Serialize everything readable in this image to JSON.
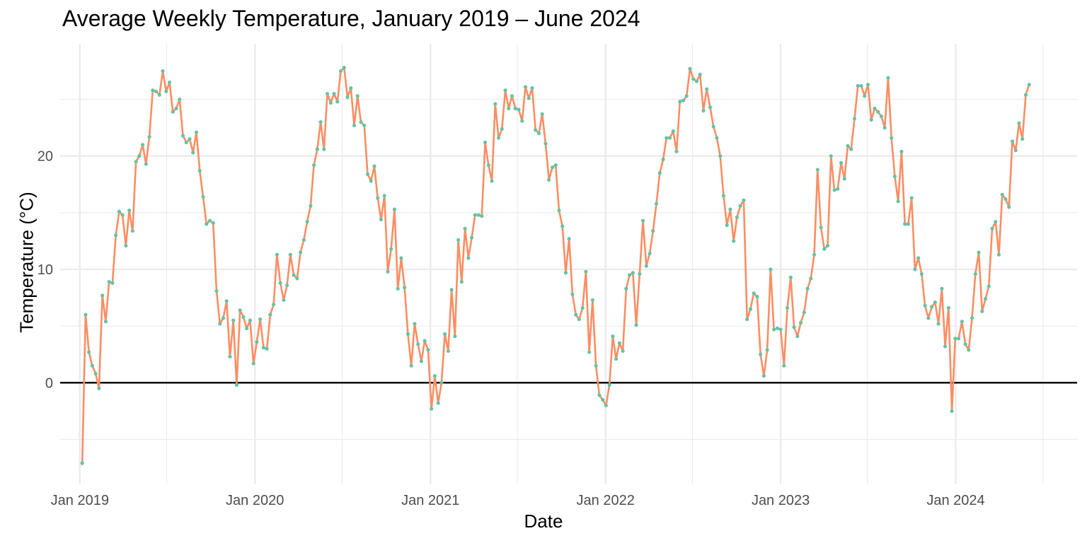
{
  "chart_data": {
    "type": "line",
    "title": "Average Weekly Temperature, January 2019 – June 2024",
    "xlabel": "Date",
    "ylabel": "Temperature (°C)",
    "x_range": [
      "2018-11-21",
      "2024-09-10"
    ],
    "ylim": [
      -8.9,
      29.9
    ],
    "x_ticks": [
      {
        "date": "2019-01-01",
        "label": "Jan 2019"
      },
      {
        "date": "2020-01-01",
        "label": "Jan 2020"
      },
      {
        "date": "2021-01-01",
        "label": "Jan 2021"
      },
      {
        "date": "2022-01-01",
        "label": "Jan 2022"
      },
      {
        "date": "2023-01-01",
        "label": "Jan 2023"
      },
      {
        "date": "2024-01-01",
        "label": "Jan 2024"
      }
    ],
    "x_minor_gridlines": [
      "2019-07-01",
      "2020-07-01",
      "2021-07-01",
      "2022-07-01",
      "2023-07-01",
      "2024-07-01"
    ],
    "y_ticks": [
      0,
      10,
      20
    ],
    "y_minor_gridlines": [
      -5,
      5,
      15,
      25
    ],
    "reference_line": {
      "y": 0,
      "color": "#000000"
    },
    "grid": true,
    "colors": {
      "line": "#FC8D62",
      "point": "#66C2A5",
      "grid": "#ebebeb"
    },
    "series": [
      {
        "x_start": "2019-01-06",
        "x_step_days": 7,
        "values": [
          -7.1,
          6.0,
          2.7,
          1.5,
          0.8,
          -0.5,
          7.7,
          5.4,
          8.9,
          8.8,
          13.0,
          15.1,
          14.8,
          12.1,
          15.2,
          13.4,
          19.5,
          20.0,
          21.0,
          19.3,
          21.7,
          25.8,
          25.7,
          25.4,
          27.5,
          25.7,
          26.5,
          23.9,
          24.2,
          25.0,
          21.8,
          21.2,
          21.5,
          20.3,
          22.1,
          18.7,
          16.4,
          14.0,
          14.3,
          14.1,
          8.1,
          5.2,
          5.7,
          7.2,
          2.3,
          5.5,
          -0.2,
          6.4,
          5.8,
          4.8,
          5.5,
          1.7,
          3.6,
          5.6,
          3.1,
          3.0,
          6.0,
          6.9,
          11.3,
          8.8,
          7.3,
          8.6,
          11.3,
          9.5,
          9.2,
          11.5,
          12.6,
          14.2,
          15.6,
          19.2,
          20.6,
          23.0,
          20.6,
          25.5,
          24.7,
          25.5,
          24.8,
          27.5,
          27.8,
          25.2,
          26.0,
          22.7,
          25.3,
          23.0,
          22.7,
          18.4,
          17.8,
          19.1,
          16.3,
          14.4,
          16.5,
          9.8,
          11.8,
          15.3,
          8.3,
          11.0,
          8.4,
          4.3,
          1.5,
          5.2,
          3.4,
          1.9,
          3.7,
          2.9,
          -2.3,
          0.6,
          -1.8,
          0.0,
          4.3,
          2.8,
          8.2,
          4.1,
          12.6,
          8.9,
          13.6,
          11.0,
          12.8,
          14.8,
          14.8,
          14.7,
          21.2,
          19.2,
          17.8,
          24.6,
          21.6,
          22.4,
          25.8,
          24.2,
          25.3,
          24.2,
          24.1,
          23.1,
          26.1,
          25.1,
          26.0,
          22.3,
          22.0,
          23.7,
          21.1,
          17.9,
          19.0,
          19.2,
          15.2,
          13.8,
          9.7,
          12.7,
          7.8,
          6.0,
          5.6,
          6.6,
          9.8,
          2.7,
          7.3,
          1.5,
          -1.1,
          -1.5,
          -2.0,
          -0.2,
          4.1,
          2.1,
          3.5,
          2.8,
          8.3,
          9.5,
          9.7,
          5.1,
          9.6,
          14.3,
          10.3,
          11.4,
          13.4,
          15.8,
          18.5,
          19.7,
          21.6,
          21.6,
          22.2,
          20.4,
          24.8,
          24.9,
          25.3,
          27.7,
          26.8,
          26.6,
          27.2,
          24.0,
          25.9,
          24.3,
          22.6,
          21.6,
          20.0,
          16.5,
          13.9,
          15.3,
          12.5,
          14.6,
          15.6,
          16.1,
          5.6,
          6.5,
          7.9,
          7.6,
          2.5,
          0.6,
          2.9,
          10.0,
          4.7,
          4.8,
          4.7,
          1.5,
          6.6,
          9.3,
          4.9,
          4.1,
          5.3,
          6.2,
          8.3,
          9.2,
          11.3,
          18.8,
          13.7,
          11.8,
          12.1,
          20.0,
          17.0,
          17.1,
          19.4,
          18.0,
          20.9,
          20.6,
          23.3,
          26.2,
          26.2,
          25.3,
          26.3,
          23.2,
          24.2,
          23.9,
          23.5,
          22.5,
          26.9,
          21.6,
          18.2,
          16.0,
          20.4,
          14.0,
          14.0,
          16.3,
          10.0,
          11.0,
          9.6,
          6.8,
          5.7,
          6.7,
          7.1,
          5.2,
          8.3,
          3.2,
          6.6,
          -2.5,
          3.9,
          3.9,
          5.4,
          3.4,
          2.9,
          5.7,
          9.6,
          11.5,
          6.3,
          7.4,
          8.5,
          13.6,
          14.2,
          11.3,
          16.6,
          16.2,
          15.5,
          21.3,
          20.5,
          22.9,
          21.5,
          25.4,
          26.3
        ]
      }
    ]
  }
}
